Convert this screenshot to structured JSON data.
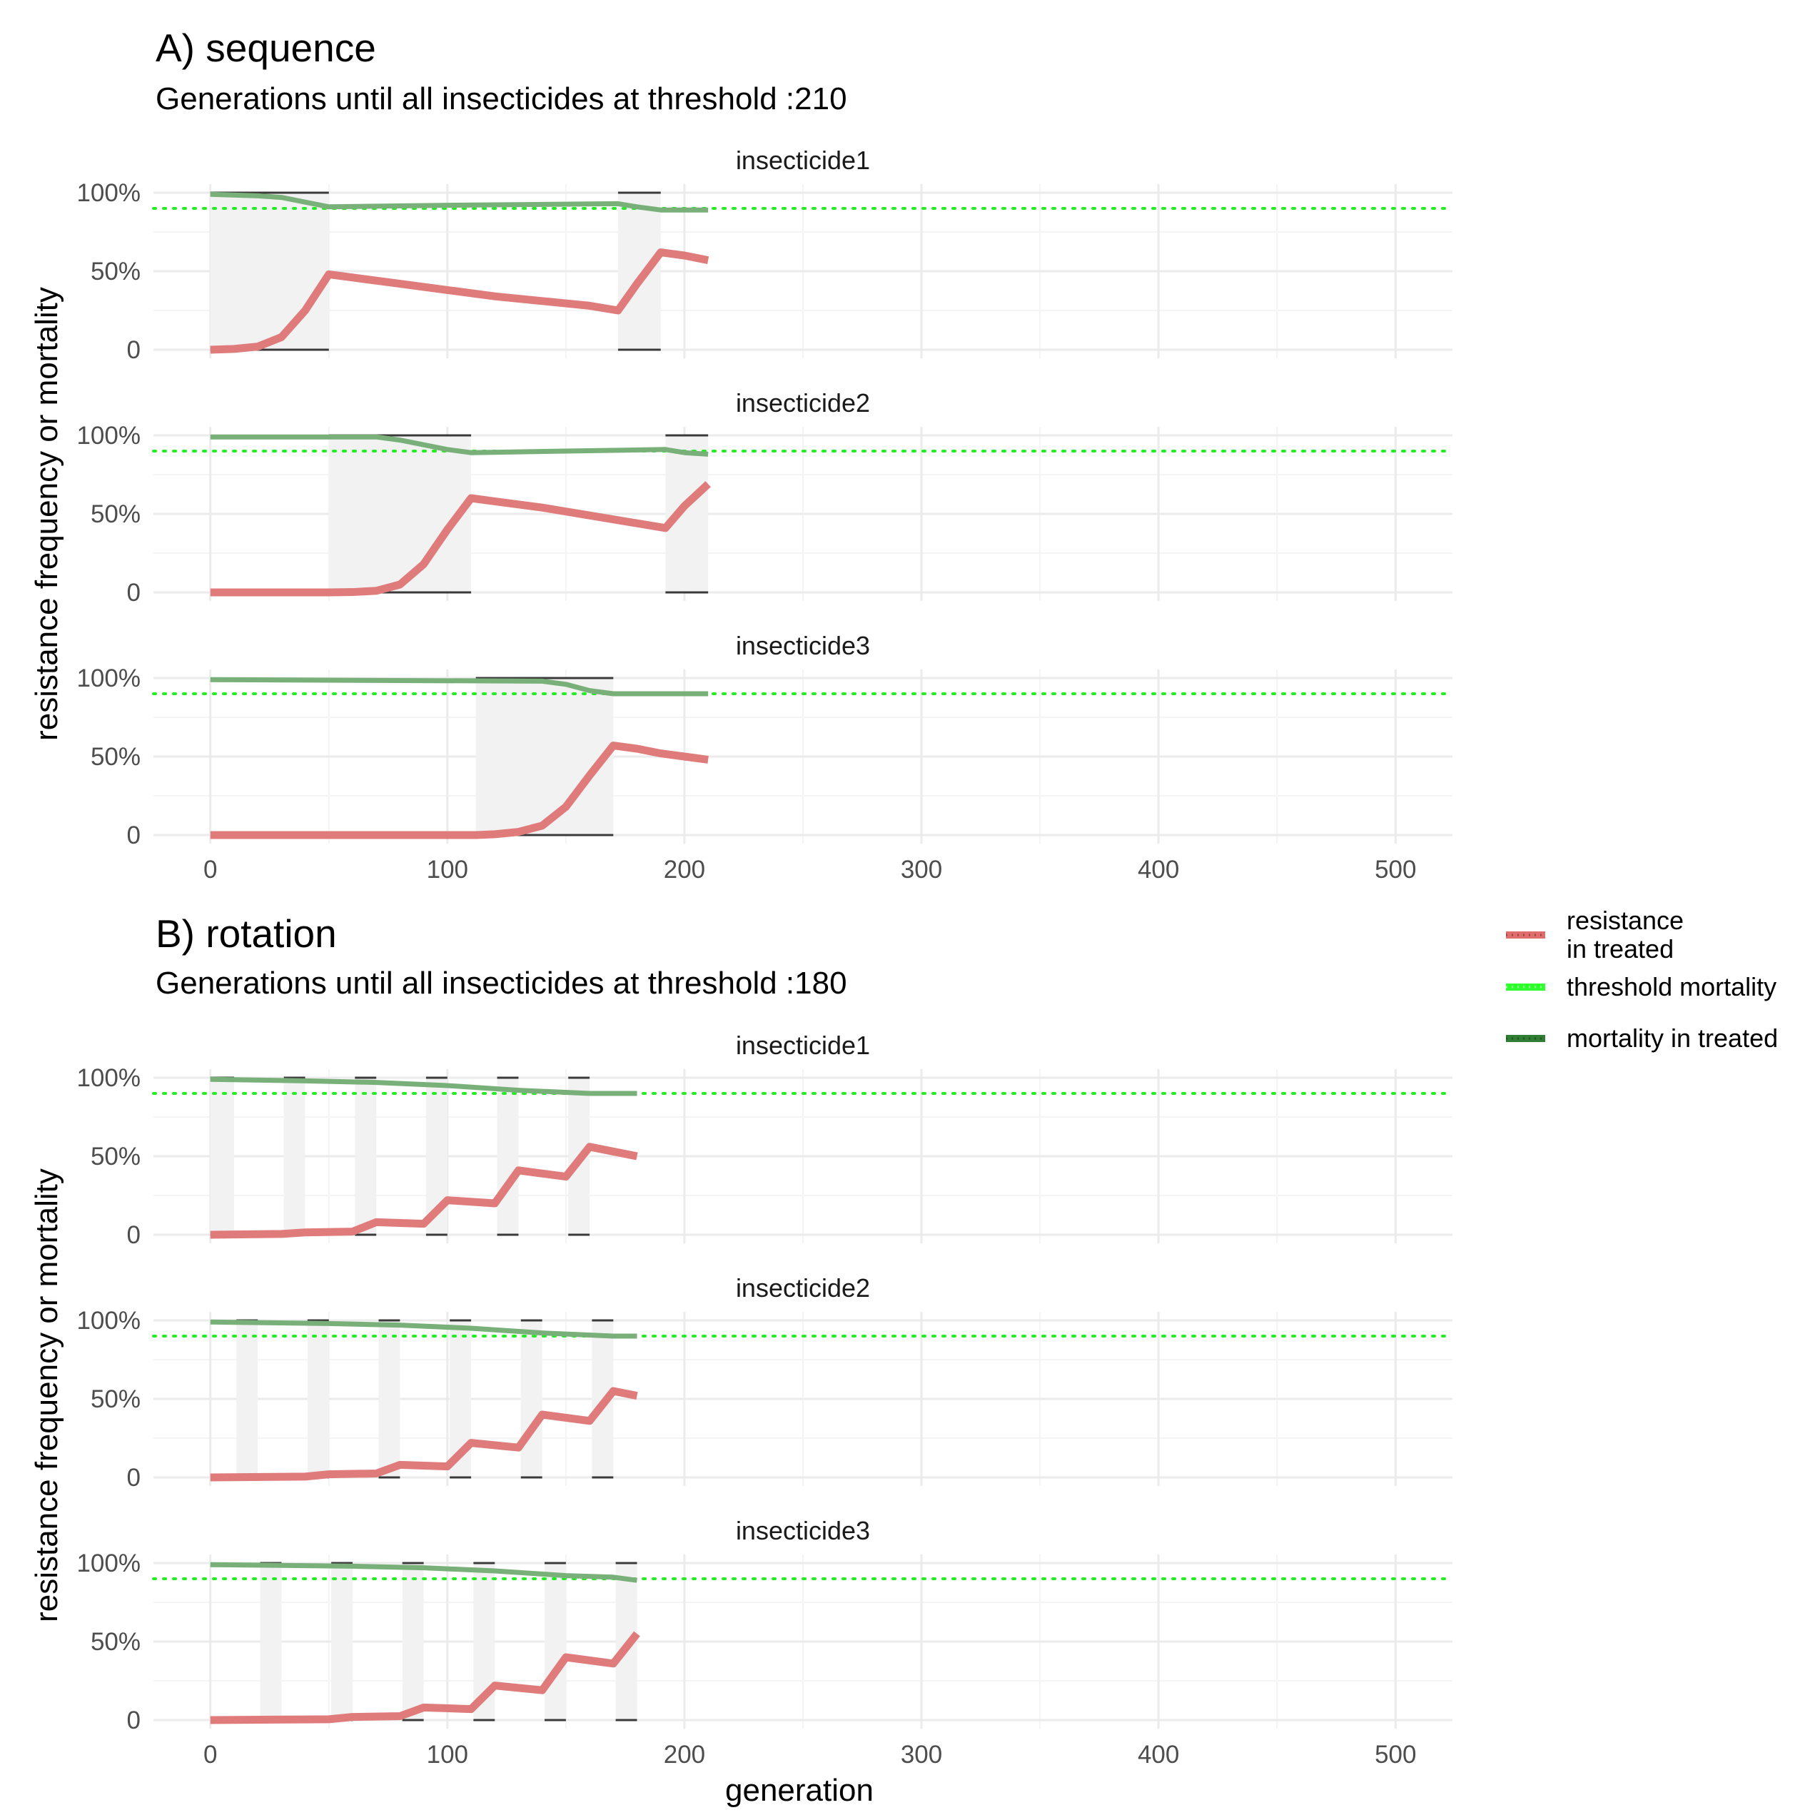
{
  "chart_data": [
    {
      "type": "line",
      "title": "A) sequence",
      "subtitle": "Generations until all insecticides at threshold :210",
      "xlabel": "",
      "ylabel": "resistance frequency or mortality",
      "xlim": [
        -24,
        524
      ],
      "ylim": [
        0,
        1
      ],
      "x_ticks": [
        0,
        100,
        200,
        300,
        400,
        500
      ],
      "y_ticks": [
        0,
        0.5,
        1
      ],
      "y_tick_labels": [
        "0",
        "50%",
        "100%"
      ],
      "threshold": 0.9,
      "grid": true,
      "panels": [
        {
          "name": "insecticide1",
          "deployed": [
            [
              0,
              50
            ],
            [
              172,
              190
            ]
          ],
          "resistance": {
            "x": [
              0,
              10,
              20,
              30,
              40,
              50,
              60,
              80,
              100,
              120,
              140,
              160,
              172,
              180,
              190,
              200,
              210
            ],
            "y": [
              0,
              0.005,
              0.02,
              0.08,
              0.25,
              0.48,
              0.46,
              0.42,
              0.38,
              0.34,
              0.31,
              0.28,
              0.25,
              0.42,
              0.62,
              0.6,
              0.57
            ]
          },
          "mortality": {
            "x": [
              0,
              20,
              30,
              40,
              50,
              100,
              172,
              180,
              190,
              210
            ],
            "y": [
              0.99,
              0.98,
              0.97,
              0.94,
              0.91,
              0.92,
              0.93,
              0.91,
              0.89,
              0.89
            ]
          }
        },
        {
          "name": "insecticide2",
          "deployed": [
            [
              50,
              110
            ],
            [
              192,
              210
            ]
          ],
          "resistance": {
            "x": [
              0,
              50,
              60,
              70,
              80,
              90,
              100,
              110,
              120,
              140,
              160,
              180,
              192,
              200,
              210
            ],
            "y": [
              0,
              0,
              0.002,
              0.01,
              0.05,
              0.18,
              0.4,
              0.6,
              0.58,
              0.54,
              0.49,
              0.44,
              0.41,
              0.55,
              0.69
            ]
          },
          "mortality": {
            "x": [
              0,
              70,
              80,
              90,
              100,
              110,
              150,
              192,
              200,
              210
            ],
            "y": [
              0.99,
              0.99,
              0.97,
              0.94,
              0.91,
              0.89,
              0.9,
              0.91,
              0.89,
              0.88
            ]
          }
        },
        {
          "name": "insecticide3",
          "deployed": [
            [
              112,
              170
            ]
          ],
          "resistance": {
            "x": [
              0,
              112,
              120,
              130,
              140,
              150,
              160,
              170,
              180,
              190,
              200,
              210
            ],
            "y": [
              0,
              0,
              0.005,
              0.02,
              0.06,
              0.18,
              0.38,
              0.57,
              0.55,
              0.52,
              0.5,
              0.48
            ]
          },
          "mortality": {
            "x": [
              0,
              140,
              150,
              160,
              170,
              210
            ],
            "y": [
              0.99,
              0.98,
              0.96,
              0.92,
              0.9,
              0.9
            ]
          }
        }
      ]
    },
    {
      "type": "line",
      "title": "B) rotation",
      "subtitle": "Generations until all insecticides at threshold :180",
      "xlabel": "generation",
      "ylabel": "resistance frequency or mortality",
      "xlim": [
        -24,
        524
      ],
      "ylim": [
        0,
        1
      ],
      "x_ticks": [
        0,
        100,
        200,
        300,
        400,
        500
      ],
      "y_ticks": [
        0,
        0.5,
        1
      ],
      "y_tick_labels": [
        "0",
        "50%",
        "100%"
      ],
      "threshold": 0.9,
      "grid": true,
      "panels": [
        {
          "name": "insecticide1",
          "deployed": [
            [
              0,
              10
            ],
            [
              31,
              40
            ],
            [
              61,
              70
            ],
            [
              91,
              100
            ],
            [
              121,
              130
            ],
            [
              151,
              160
            ]
          ],
          "resistance": {
            "x": [
              0,
              30,
              40,
              60,
              70,
              90,
              100,
              120,
              130,
              150,
              160,
              180
            ],
            "y": [
              0,
              0.005,
              0.015,
              0.02,
              0.08,
              0.07,
              0.22,
              0.2,
              0.41,
              0.37,
              0.56,
              0.5
            ]
          },
          "mortality": {
            "x": [
              0,
              40,
              70,
              100,
              130,
              160,
              180
            ],
            "y": [
              0.99,
              0.98,
              0.97,
              0.95,
              0.92,
              0.9,
              0.9
            ]
          }
        },
        {
          "name": "insecticide2",
          "deployed": [
            [
              11,
              20
            ],
            [
              41,
              50
            ],
            [
              71,
              80
            ],
            [
              101,
              110
            ],
            [
              131,
              140
            ],
            [
              161,
              170
            ]
          ],
          "resistance": {
            "x": [
              0,
              40,
              50,
              70,
              80,
              100,
              110,
              130,
              140,
              160,
              170,
              180
            ],
            "y": [
              0,
              0.005,
              0.02,
              0.025,
              0.08,
              0.07,
              0.22,
              0.19,
              0.4,
              0.36,
              0.55,
              0.52
            ]
          },
          "mortality": {
            "x": [
              0,
              50,
              80,
              110,
              140,
              170,
              180
            ],
            "y": [
              0.99,
              0.98,
              0.97,
              0.95,
              0.92,
              0.9,
              0.9
            ]
          }
        },
        {
          "name": "insecticide3",
          "deployed": [
            [
              21,
              30
            ],
            [
              51,
              60
            ],
            [
              81,
              90
            ],
            [
              111,
              120
            ],
            [
              141,
              150
            ],
            [
              171,
              180
            ]
          ],
          "resistance": {
            "x": [
              0,
              50,
              60,
              80,
              90,
              110,
              120,
              140,
              150,
              170,
              180
            ],
            "y": [
              0,
              0.005,
              0.02,
              0.025,
              0.08,
              0.07,
              0.22,
              0.19,
              0.4,
              0.36,
              0.55
            ]
          },
          "mortality": {
            "x": [
              0,
              60,
              90,
              120,
              150,
              170,
              180
            ],
            "y": [
              0.99,
              0.98,
              0.97,
              0.95,
              0.92,
              0.91,
              0.89
            ]
          }
        }
      ]
    }
  ],
  "legend": {
    "position": "right",
    "items": [
      {
        "label": [
          "resistance",
          "in treated"
        ],
        "color": "#e06c6c"
      },
      {
        "label": [
          "threshold mortality"
        ],
        "color": "#2fff2f"
      },
      {
        "label": [
          "mortality in treated"
        ],
        "color": "#2e7d32"
      }
    ]
  },
  "colors": {
    "resistance": "#e07b7b",
    "mortality": "#79b079",
    "threshold": "#22ee22",
    "deployed_fill": "#f2f2f2",
    "deployed_bound": "#3a3a3a",
    "grid_major": "#ebebeb",
    "grid_minor": "#f4f4f4"
  }
}
